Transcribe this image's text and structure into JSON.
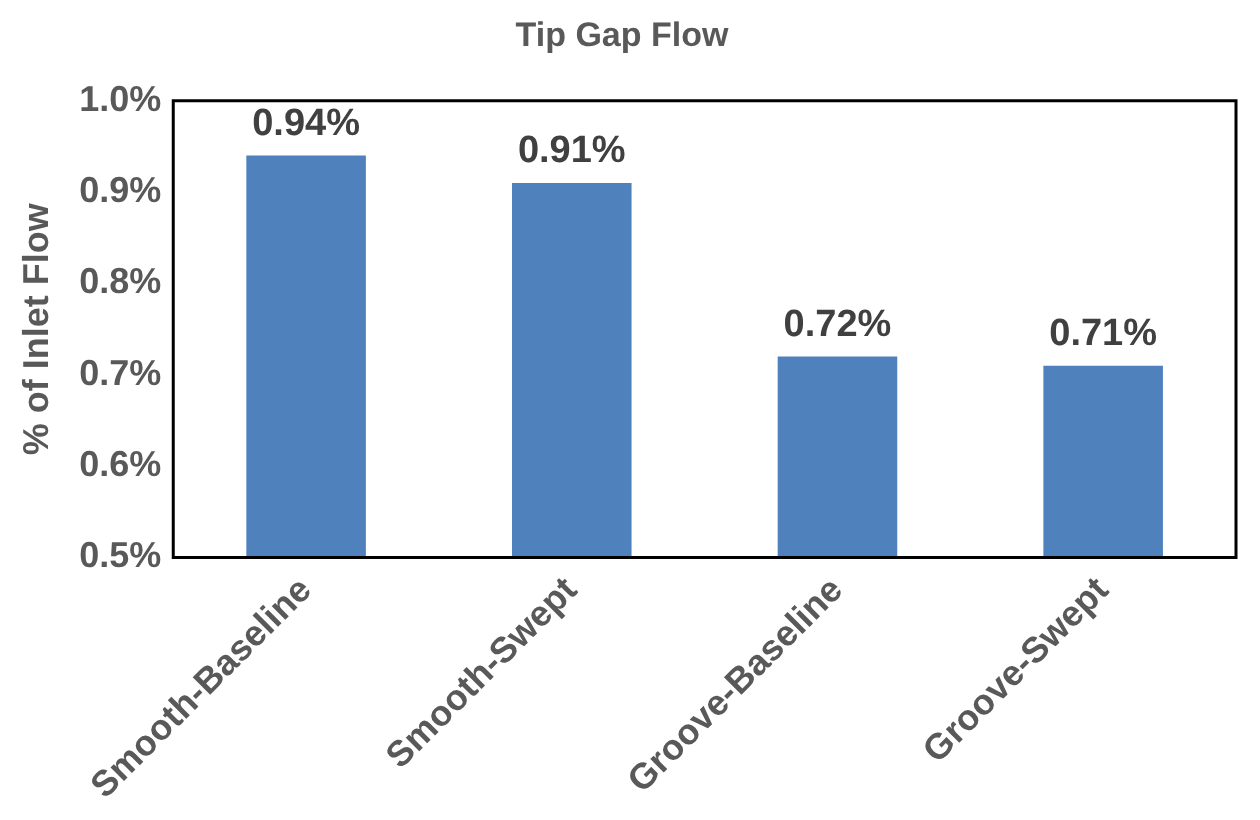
{
  "chart_data": {
    "type": "bar",
    "title": "Tip Gap Flow",
    "ylabel": "% of Inlet Flow",
    "categories": [
      "Smooth-Baseline",
      "Smooth-Swept",
      "Groove-Baseline",
      "Groove-Swept"
    ],
    "values": [
      0.94,
      0.91,
      0.72,
      0.71
    ],
    "value_labels": [
      "0.94%",
      "0.91%",
      "0.72%",
      "0.71%"
    ],
    "color": "#4f81bd",
    "ylim": [
      0.5,
      1.0
    ],
    "yticks": [
      {
        "value": 0.5,
        "label": "0.5%"
      },
      {
        "value": 0.6,
        "label": "0.6%"
      },
      {
        "value": 0.7,
        "label": "0.7%"
      },
      {
        "value": 0.8,
        "label": "0.8%"
      },
      {
        "value": 0.9,
        "label": "0.9%"
      },
      {
        "value": 1.0,
        "label": "1.0%"
      }
    ],
    "grid": false,
    "legend": false
  }
}
